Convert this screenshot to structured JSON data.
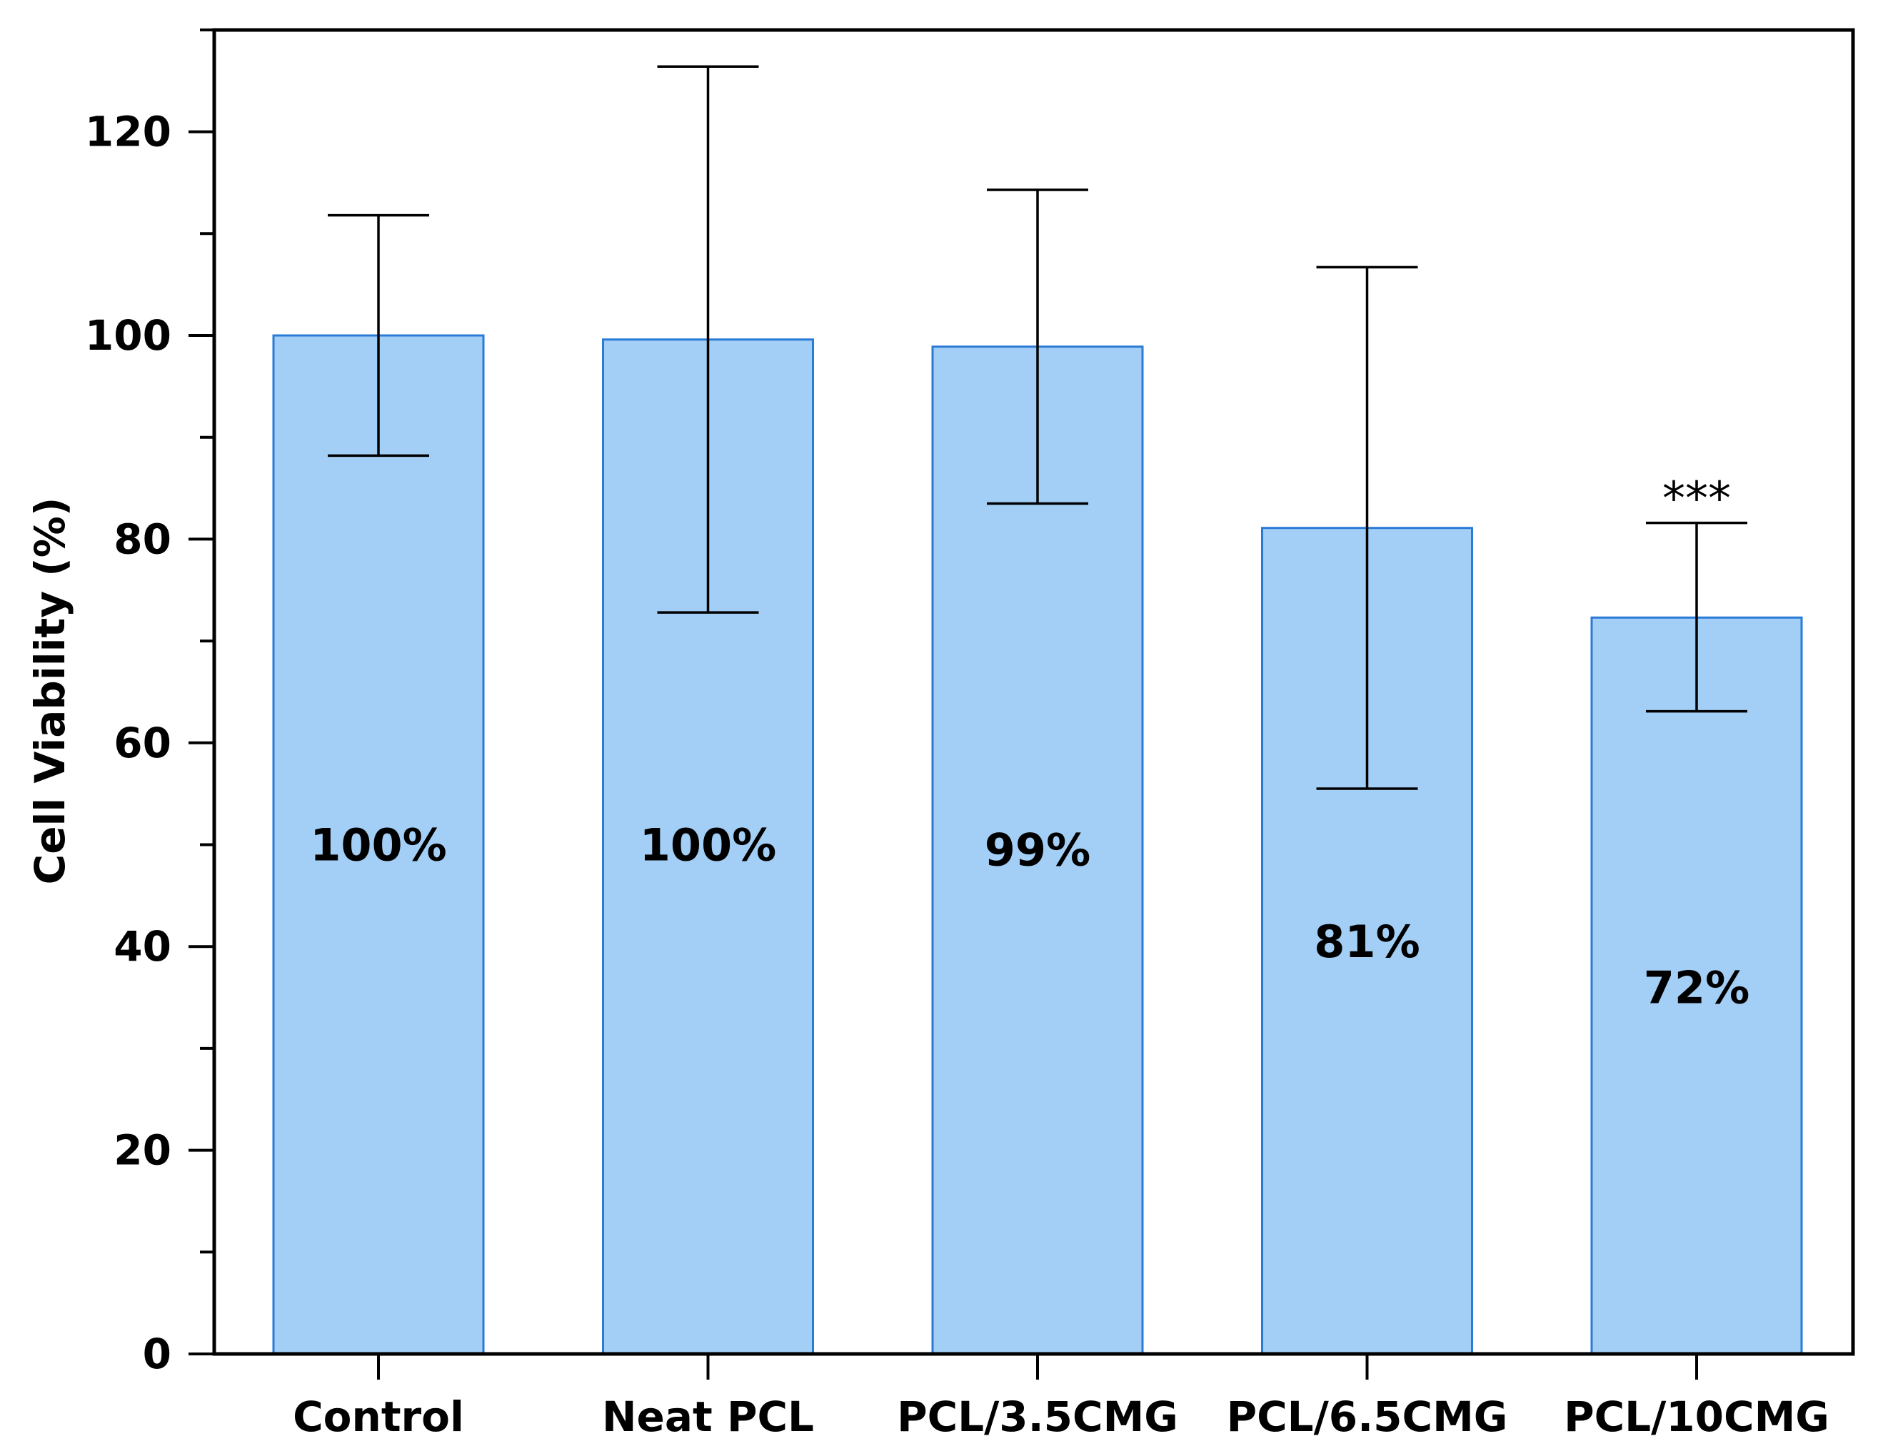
{
  "chart_data": {
    "type": "bar",
    "title": "",
    "xlabel": "",
    "ylabel": "Cell Viability (%)",
    "ylim": [
      0,
      130
    ],
    "yticks": [
      0,
      20,
      40,
      60,
      80,
      100,
      120
    ],
    "categories": [
      "Control",
      "Neat PCL",
      "PCL/3.5CMG",
      "PCL/6.5CMG",
      "PCL/10CMG"
    ],
    "values": [
      100,
      99.6,
      98.9,
      81.1,
      72.3
    ],
    "error_low": [
      88.2,
      72.8,
      83.5,
      55.5,
      63.1
    ],
    "error_high": [
      111.8,
      126.4,
      114.3,
      106.7,
      81.6
    ],
    "data_labels": [
      "100%",
      "100%",
      "99%",
      "81%",
      "72%"
    ],
    "label_y": [
      50,
      50,
      49.5,
      40.5,
      36
    ],
    "annotations": [
      {
        "category": "PCL/10CMG",
        "text": "***"
      }
    ],
    "colors": {
      "bar_fill": "#a3cef5",
      "bar_edge": "#2a7bd6",
      "axis": "#000000"
    }
  }
}
